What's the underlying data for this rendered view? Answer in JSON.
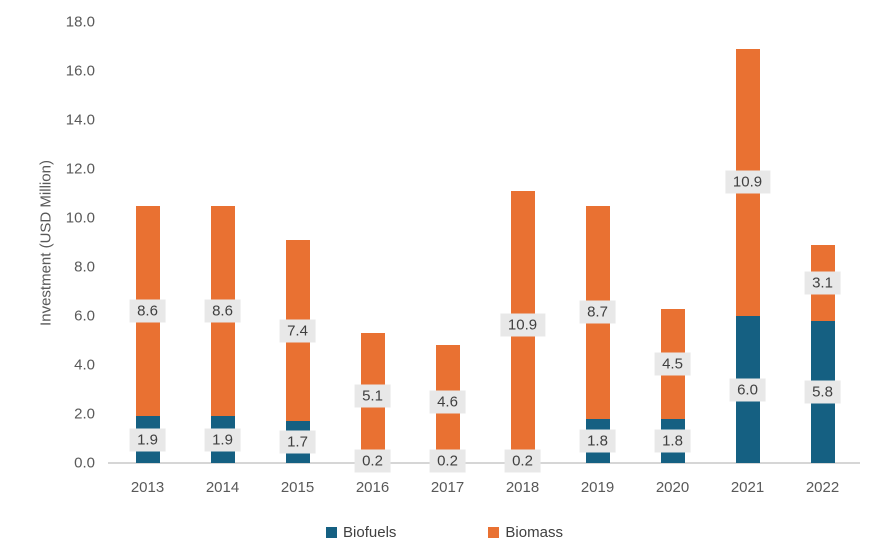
{
  "chart_data": {
    "type": "bar",
    "stacked": true,
    "title": "",
    "xlabel": "",
    "ylabel": "Investment (USD Million)",
    "categories": [
      "2013",
      "2014",
      "2015",
      "2016",
      "2017",
      "2018",
      "2019",
      "2020",
      "2021",
      "2022"
    ],
    "series": [
      {
        "name": "Biofuels",
        "color": "#156082",
        "values": [
          1.9,
          1.9,
          1.7,
          0.2,
          0.2,
          0.2,
          1.8,
          1.8,
          6.0,
          5.8
        ]
      },
      {
        "name": "Biomass",
        "color": "#E97132",
        "values": [
          8.6,
          8.6,
          7.4,
          5.1,
          4.6,
          10.9,
          8.7,
          4.5,
          10.9,
          3.1
        ]
      }
    ],
    "ylim": [
      0,
      18
    ],
    "ytick_step": 2,
    "ytick_labels": [
      "0.0",
      "2.0",
      "4.0",
      "6.0",
      "8.0",
      "10.0",
      "12.0",
      "14.0",
      "16.0",
      "18.0"
    ],
    "grid": false,
    "data_labels": true,
    "legend_position": "bottom",
    "colors": {
      "label_background": "#E8E8E8",
      "label_text": "#404040",
      "axis_text": "#595959",
      "axis_line": "#D6D6D6",
      "background": "#FFFFFF"
    }
  }
}
